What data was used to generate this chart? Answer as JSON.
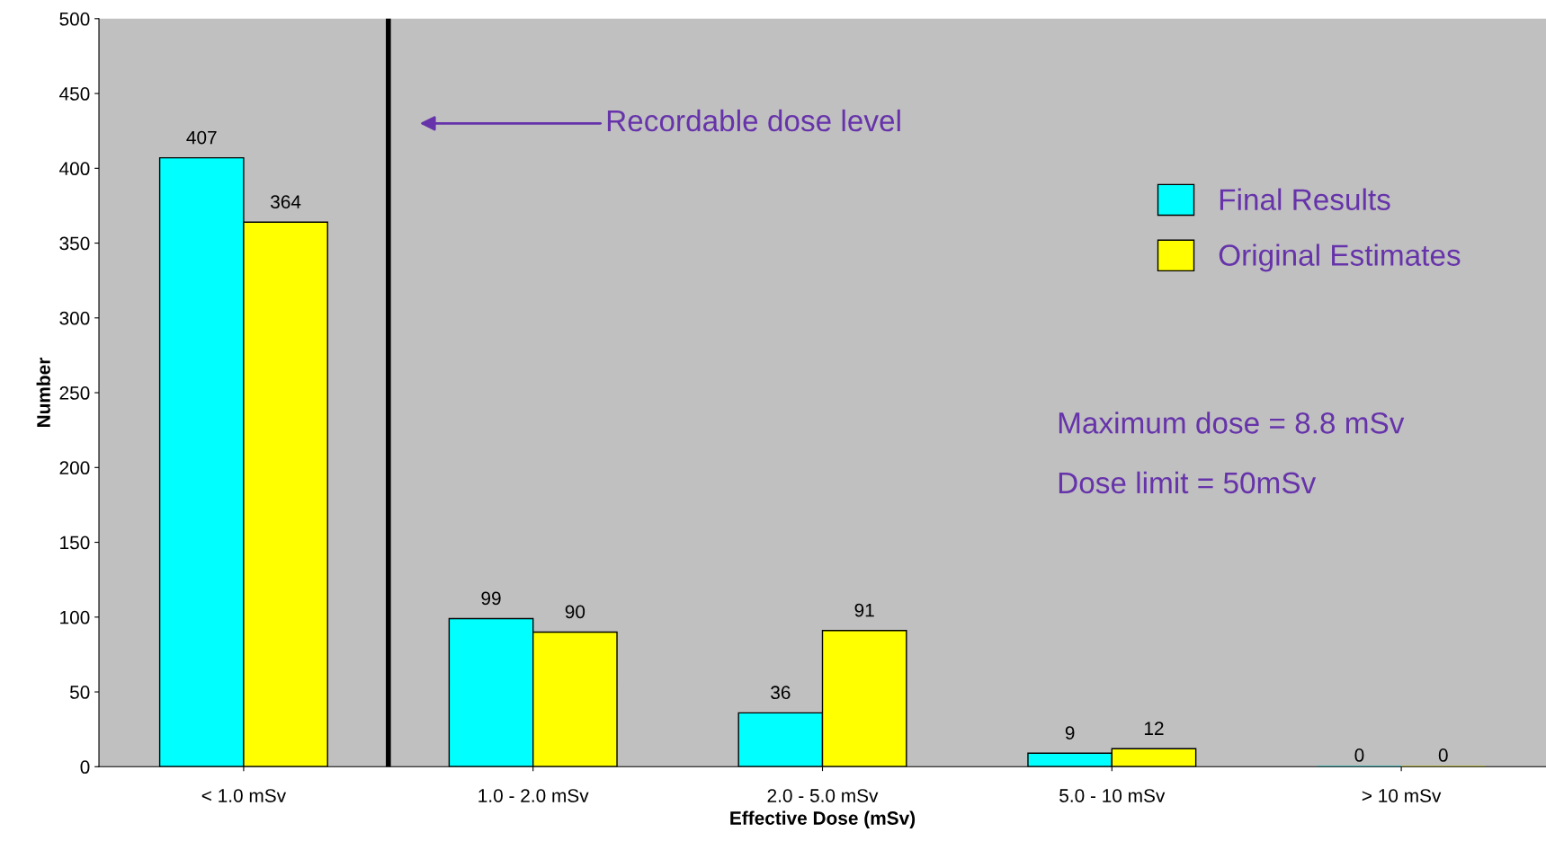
{
  "chart_data": {
    "type": "bar",
    "xlabel": "Effective Dose (mSv)",
    "ylabel": "Number",
    "categories": [
      "< 1.0 mSv",
      "1.0 - 2.0 mSv",
      "2.0 - 5.0 mSv",
      "5.0 - 10 mSv",
      "> 10 mSv"
    ],
    "series": [
      {
        "name": "Final Results",
        "color": "#00ffff",
        "values": [
          407,
          99,
          36,
          9,
          0
        ]
      },
      {
        "name": "Original Estimates",
        "color": "#ffff00",
        "values": [
          364,
          90,
          91,
          12,
          0
        ]
      }
    ],
    "ylim": [
      0,
      500
    ],
    "yticks": [
      0,
      50,
      100,
      150,
      200,
      250,
      300,
      350,
      400,
      450,
      500
    ],
    "annotations": [
      "Recordable dose level",
      "Maximum dose = 8.8 mSv",
      "Dose limit = 50mSv"
    ],
    "data_labels": true,
    "grid": false,
    "legend": "right"
  }
}
